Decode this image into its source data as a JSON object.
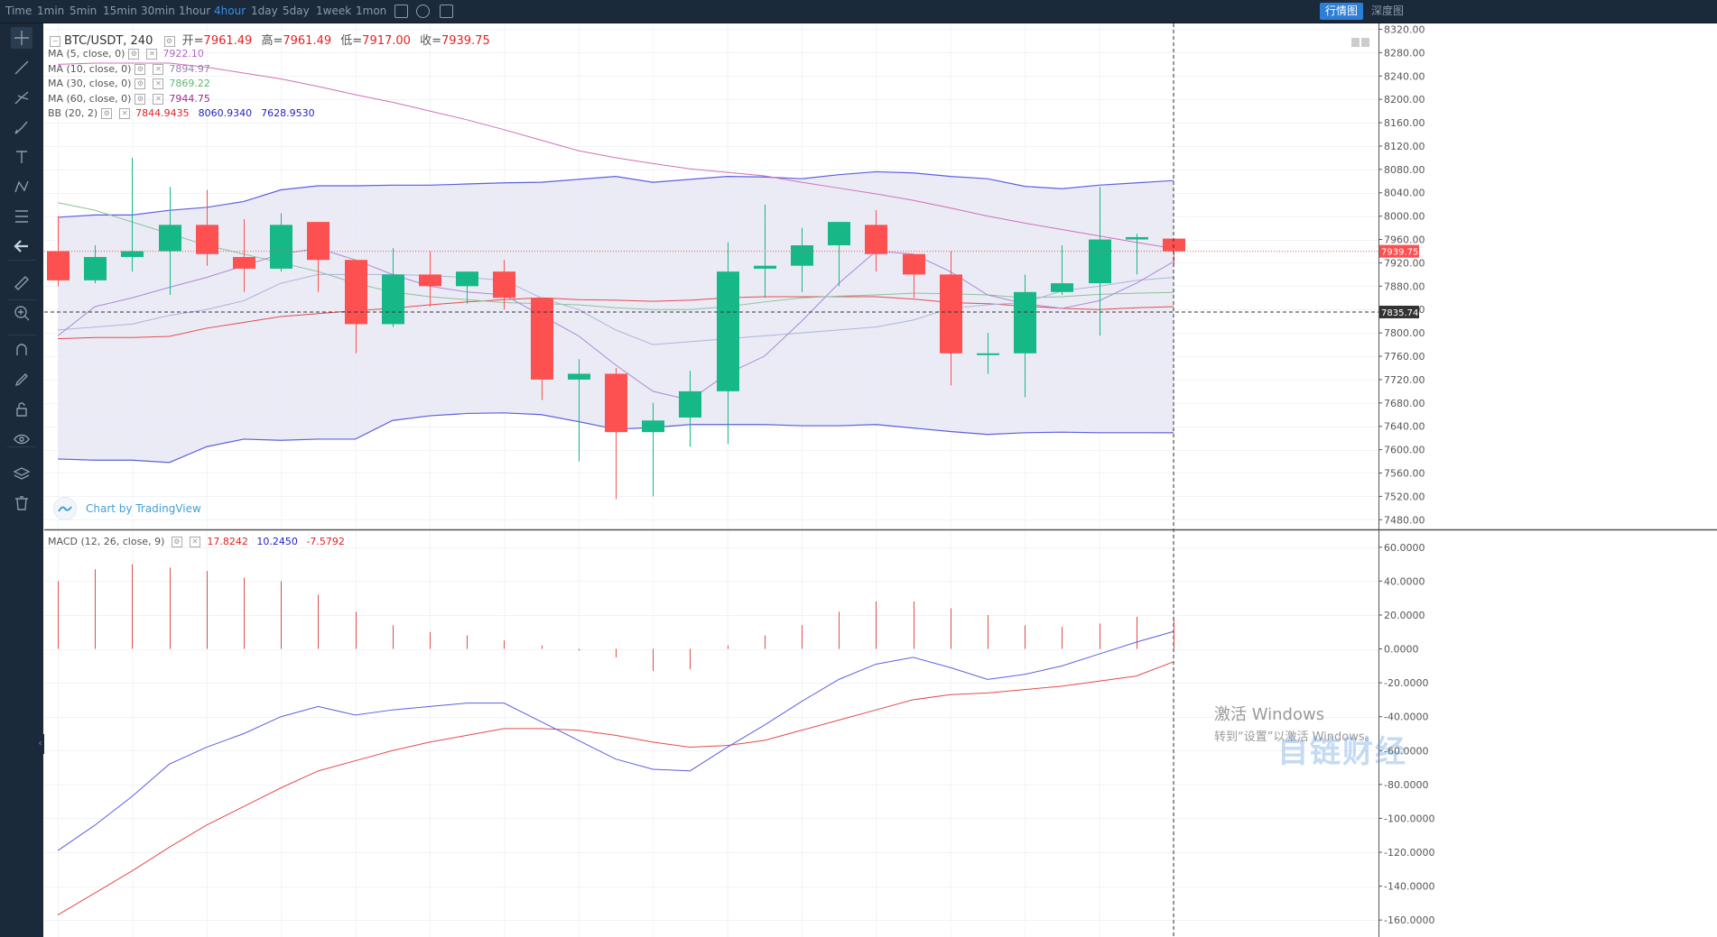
{
  "toolbar": {
    "intervals": [
      {
        "label": "Time",
        "active": false
      },
      {
        "label": "1min",
        "active": false
      },
      {
        "label": "5min",
        "active": false
      },
      {
        "label": "15min",
        "active": false
      },
      {
        "label": "30min",
        "active": false
      },
      {
        "label": "1hour",
        "active": false
      },
      {
        "label": "4hour",
        "active": true
      },
      {
        "label": "1day",
        "active": false
      },
      {
        "label": "5day",
        "active": false
      },
      {
        "label": "1week",
        "active": false
      },
      {
        "label": "1mon",
        "active": false
      }
    ],
    "icons": [
      "chart-type-icon",
      "settings-icon",
      "screenshot-icon"
    ],
    "view_tabs": [
      {
        "label": "行情图",
        "active": true
      },
      {
        "label": "深度图",
        "active": false
      }
    ]
  },
  "sidebar_tools": [
    "crosshair-icon",
    "trendline-icon",
    "pitchfork-icon",
    "brush-icon",
    "text-icon",
    "pattern-icon",
    "fib-icon",
    "back-arrow-icon",
    "ruler-icon",
    "zoom-icon",
    "magnet-icon",
    "lock-draw-icon",
    "unlock-icon",
    "eye-icon",
    "layers-icon",
    "trash-icon"
  ],
  "legend": {
    "symbol": "BTC/USDT, 240",
    "open_label": "开=",
    "open": "7961.49",
    "high_label": "高=",
    "high": "7961.49",
    "low_label": "低=",
    "low": "7917.00",
    "close_label": "收=",
    "close": "7939.75",
    "indicators": [
      {
        "label": "MA (5, close, 0)",
        "values": [
          "7922.10"
        ],
        "colors": [
          "#b067c4"
        ]
      },
      {
        "label": "MA (10, close, 0)",
        "values": [
          "7894.97"
        ],
        "colors": [
          "#9c7fb0"
        ]
      },
      {
        "label": "MA (30, close, 0)",
        "values": [
          "7869.22"
        ],
        "colors": [
          "#5eb872"
        ]
      },
      {
        "label": "MA (60, close, 0)",
        "values": [
          "7944.75"
        ],
        "colors": [
          "#9c2b8e"
        ]
      },
      {
        "label": "BB (20, 2)",
        "values": [
          "7844.9435",
          "8060.9340",
          "7628.9530"
        ],
        "colors": [
          "#e32222",
          "#2222cc",
          "#2222cc"
        ]
      }
    ],
    "macd_label": "MACD (12, 26, close, 9)",
    "macd_values": [
      "17.8242",
      "10.2450",
      "-7.5792"
    ],
    "macd_colors": [
      "#e32222",
      "#2222cc",
      "#e32222"
    ]
  },
  "watermark": "Chart by TradingView",
  "windows_watermark": {
    "line1": "激活 Windows",
    "line2": "转到“设置”以激活 Windows。"
  },
  "logo_watermark": "自链财经",
  "price_badges": {
    "current": "7939.75",
    "crosshair": "7835.74"
  },
  "colors": {
    "up": "#17b887",
    "down": "#fd5050",
    "bb_band": "#5c60e0",
    "bb_fill": "#e8e8f5"
  },
  "chart_data": {
    "type": "candlestick",
    "title": "BTC/USDT, 240",
    "candles": [
      {
        "o": 7940,
        "h": 8000,
        "l": 7880,
        "c": 7890
      },
      {
        "o": 7890,
        "h": 7950,
        "l": 7885,
        "c": 7930
      },
      {
        "o": 7930,
        "h": 8100,
        "l": 7905,
        "c": 7940
      },
      {
        "o": 7940,
        "h": 8050,
        "l": 7865,
        "c": 7985
      },
      {
        "o": 7985,
        "h": 8045,
        "l": 7915,
        "c": 7935
      },
      {
        "o": 7930,
        "h": 7995,
        "l": 7870,
        "c": 7910
      },
      {
        "o": 7910,
        "h": 8005,
        "l": 7905,
        "c": 7985
      },
      {
        "o": 7990,
        "h": 7990,
        "l": 7870,
        "c": 7925
      },
      {
        "o": 7925,
        "h": 7925,
        "l": 7765,
        "c": 7815
      },
      {
        "o": 7815,
        "h": 7945,
        "l": 7810,
        "c": 7900
      },
      {
        "o": 7900,
        "h": 7940,
        "l": 7845,
        "c": 7880
      },
      {
        "o": 7880,
        "h": 7905,
        "l": 7850,
        "c": 7905
      },
      {
        "o": 7905,
        "h": 7925,
        "l": 7840,
        "c": 7860
      },
      {
        "o": 7860,
        "h": 7860,
        "l": 7685,
        "c": 7720
      },
      {
        "o": 7720,
        "h": 7755,
        "l": 7580,
        "c": 7730
      },
      {
        "o": 7730,
        "h": 7740,
        "l": 7515,
        "c": 7630
      },
      {
        "o": 7630,
        "h": 7680,
        "l": 7520,
        "c": 7650
      },
      {
        "o": 7655,
        "h": 7735,
        "l": 7605,
        "c": 7700
      },
      {
        "o": 7700,
        "h": 7955,
        "l": 7610,
        "c": 7905
      },
      {
        "o": 7910,
        "h": 8020,
        "l": 7860,
        "c": 7915
      },
      {
        "o": 7915,
        "h": 7980,
        "l": 7870,
        "c": 7950
      },
      {
        "o": 7950,
        "h": 7990,
        "l": 7880,
        "c": 7990
      },
      {
        "o": 7985,
        "h": 8010,
        "l": 7905,
        "c": 7935
      },
      {
        "o": 7935,
        "h": 7935,
        "l": 7860,
        "c": 7900
      },
      {
        "o": 7900,
        "h": 7940,
        "l": 7710,
        "c": 7765
      },
      {
        "o": 7765,
        "h": 7800,
        "l": 7730,
        "c": 7765
      },
      {
        "o": 7765,
        "h": 7900,
        "l": 7690,
        "c": 7870
      },
      {
        "o": 7870,
        "h": 7950,
        "l": 7865,
        "c": 7885
      },
      {
        "o": 7885,
        "h": 8050,
        "l": 7795,
        "c": 7960
      },
      {
        "o": 7960,
        "h": 7970,
        "l": 7900,
        "c": 7964
      },
      {
        "o": 7961.49,
        "h": 7961.49,
        "l": 7917.0,
        "c": 7939.75
      }
    ],
    "ma5": [
      7795,
      7845,
      7860,
      7878,
      7895,
      7915,
      7935,
      7945,
      7925,
      7900,
      7880,
      7870,
      7865,
      7830,
      7795,
      7745,
      7700,
      7685,
      7730,
      7760,
      7820,
      7885,
      7940,
      7935,
      7905,
      7865,
      7850,
      7842,
      7855,
      7885,
      7922.1
    ],
    "ma10": [
      7805,
      7810,
      7815,
      7830,
      7840,
      7855,
      7885,
      7900,
      7900,
      7900,
      7898,
      7895,
      7890,
      7860,
      7840,
      7805,
      7780,
      7785,
      7790,
      7795,
      7800,
      7805,
      7810,
      7822,
      7842,
      7848,
      7852,
      7872,
      7880,
      7890,
      7894.97
    ],
    "ma30": [
      8023,
      8010,
      7990,
      7970,
      7950,
      7935,
      7920,
      7905,
      7885,
      7870,
      7862,
      7857,
      7852,
      7850,
      7848,
      7843,
      7840,
      7840,
      7845,
      7853,
      7860,
      7863,
      7865,
      7868,
      7867,
      7865,
      7860,
      7862,
      7866,
      7868,
      7869.22
    ],
    "ma60": [
      8260,
      8262,
      8262,
      8262,
      8255,
      8245,
      8235,
      8222,
      8208,
      8195,
      8180,
      8165,
      8148,
      8130,
      8112,
      8100,
      8090,
      8081,
      8075,
      8069,
      8058,
      8048,
      8038,
      8027,
      8014,
      8000,
      7988,
      7977,
      7966,
      7955,
      7944.75
    ],
    "bb_mid": [
      7790,
      7792,
      7792,
      7794,
      7808,
      7818,
      7828,
      7833,
      7838,
      7842,
      7848,
      7853,
      7857,
      7860,
      7857,
      7856,
      7854,
      7856,
      7860,
      7862,
      7862,
      7862,
      7862,
      7858,
      7852,
      7850,
      7846,
      7842,
      7840,
      7843,
      7844.94
    ],
    "bb_upper": [
      7998,
      8002,
      8002,
      8010,
      8015,
      8025,
      8045,
      8052,
      8052,
      8053,
      8053,
      8055,
      8057,
      8058,
      8063,
      8068,
      8058,
      8063,
      8068,
      8067,
      8064,
      8071,
      8076,
      8074,
      8068,
      8064,
      8051,
      8047,
      8053,
      8057,
      8060.93
    ],
    "bb_lower": [
      7584,
      7582,
      7582,
      7578,
      7605,
      7618,
      7616,
      7618,
      7618,
      7650,
      7658,
      7662,
      7663,
      7660,
      7648,
      7635,
      7638,
      7643,
      7643,
      7643,
      7641,
      7641,
      7643,
      7637,
      7631,
      7626,
      7629,
      7630,
      7629,
      7629,
      7628.95
    ],
    "macd_hist": [
      40,
      47,
      50,
      48,
      46,
      42,
      40,
      32,
      22,
      14,
      10,
      8,
      5,
      2,
      -1,
      -5,
      -13,
      -12,
      2,
      8,
      14,
      22,
      28,
      28,
      24,
      20,
      14,
      13,
      15,
      19,
      17.82
    ],
    "macd_dif": [
      -119,
      -104,
      -87,
      -68,
      -58,
      -50,
      -40,
      -34,
      -39,
      -36,
      -34,
      -32,
      -32,
      -43,
      -54,
      -65,
      -71,
      -72,
      -58,
      -45,
      -31,
      -18,
      -9,
      -5,
      -11,
      -18,
      -15,
      -10,
      -3,
      4,
      10.25
    ],
    "macd_dea": [
      -157,
      -144,
      -131,
      -117,
      -104,
      -93,
      -82,
      -72,
      -66,
      -60,
      -55,
      -51,
      -47,
      -47,
      -48,
      -51,
      -55,
      -58,
      -57,
      -54,
      -48,
      -42,
      -36,
      -30,
      -27,
      -26,
      -24,
      -22,
      -19,
      -16,
      -7.58
    ],
    "y_ticks": [
      "8320.00",
      "8280.00",
      "8240.00",
      "8200.00",
      "8160.00",
      "8120.00",
      "8080.00",
      "8040.00",
      "8000.00",
      "7960.00",
      "7920.00",
      "7880.00",
      "7840.00",
      "7800.00",
      "7760.00",
      "7720.00",
      "7680.00",
      "7640.00",
      "7600.00",
      "7560.00",
      "7520.00",
      "7480.00"
    ],
    "macd_ticks": [
      "60.0000",
      "40.0000",
      "20.0000",
      "0.0000",
      "-20.0000",
      "-40.0000",
      "-60.0000",
      "-80.0000",
      "-100.0000",
      "-120.0000",
      "-140.0000",
      "-160.0000"
    ],
    "ylim": [
      7465,
      8330
    ],
    "macd_ylim": [
      -170,
      70
    ]
  }
}
